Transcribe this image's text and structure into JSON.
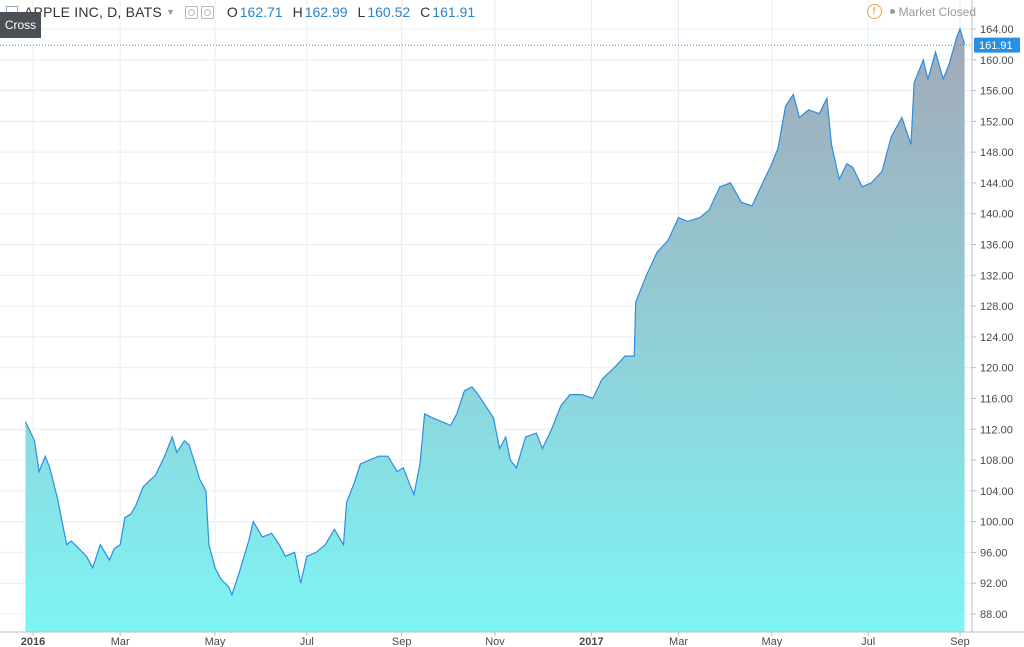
{
  "header": {
    "symbol": "APPLE INC, D, BATS",
    "open_label": "O",
    "open": "162.71",
    "high_label": "H",
    "high": "162.99",
    "low_label": "L",
    "low": "160.52",
    "close_label": "C",
    "close": "161.91",
    "market_status": "Market Closed",
    "cross_label": "Cross"
  },
  "colors": {
    "line": "#2b8fe0",
    "fill_top": "#a3a8b8",
    "fill_bottom": "#7ef4f4",
    "last_price_bg": "#2b8fe0",
    "grid": "#e9ecef"
  },
  "chart_data": {
    "type": "area",
    "title": "",
    "xlabel": "",
    "ylabel": "",
    "ylim": [
      86,
      166
    ],
    "y_ticks": [
      "88.00",
      "92.00",
      "96.00",
      "100.00",
      "104.00",
      "108.00",
      "112.00",
      "116.00",
      "120.00",
      "124.00",
      "128.00",
      "132.00",
      "136.00",
      "140.00",
      "144.00",
      "148.00",
      "152.00",
      "156.00",
      "160.00",
      "164.00"
    ],
    "x_ticks": [
      {
        "label": "2016",
        "date": "2016-01-04",
        "bold": true
      },
      {
        "label": "Mar",
        "date": "2016-03-01"
      },
      {
        "label": "May",
        "date": "2016-05-02"
      },
      {
        "label": "Jul",
        "date": "2016-07-01"
      },
      {
        "label": "Sep",
        "date": "2016-09-01"
      },
      {
        "label": "Nov",
        "date": "2016-11-01"
      },
      {
        "label": "2017",
        "date": "2017-01-03",
        "bold": true
      },
      {
        "label": "Mar",
        "date": "2017-03-01"
      },
      {
        "label": "May",
        "date": "2017-05-01"
      },
      {
        "label": "Jul",
        "date": "2017-07-03"
      },
      {
        "label": "Sep",
        "date": "2017-09-01"
      }
    ],
    "last_price": "161.91",
    "series": [
      {
        "values": [
          [
            "2015-12-30",
            113.0
          ],
          [
            "2016-01-05",
            110.5
          ],
          [
            "2016-01-08",
            106.5
          ],
          [
            "2016-01-12",
            108.5
          ],
          [
            "2016-01-15",
            107.0
          ],
          [
            "2016-01-20",
            103.0
          ],
          [
            "2016-01-26",
            97.0
          ],
          [
            "2016-01-29",
            97.5
          ],
          [
            "2016-02-03",
            96.5
          ],
          [
            "2016-02-08",
            95.5
          ],
          [
            "2016-02-12",
            94.0
          ],
          [
            "2016-02-17",
            97.0
          ],
          [
            "2016-02-23",
            95.0
          ],
          [
            "2016-02-26",
            96.5
          ],
          [
            "2016-03-01",
            97.0
          ],
          [
            "2016-03-04",
            100.5
          ],
          [
            "2016-03-08",
            101.0
          ],
          [
            "2016-03-11",
            102.0
          ],
          [
            "2016-03-16",
            104.5
          ],
          [
            "2016-03-21",
            105.5
          ],
          [
            "2016-03-24",
            106.0
          ],
          [
            "2016-03-30",
            108.5
          ],
          [
            "2016-04-04",
            111.0
          ],
          [
            "2016-04-07",
            109.0
          ],
          [
            "2016-04-12",
            110.5
          ],
          [
            "2016-04-15",
            110.0
          ],
          [
            "2016-04-19",
            107.5
          ],
          [
            "2016-04-22",
            105.5
          ],
          [
            "2016-04-26",
            104.0
          ],
          [
            "2016-04-28",
            97.0
          ],
          [
            "2016-05-02",
            94.0
          ],
          [
            "2016-05-06",
            92.5
          ],
          [
            "2016-05-11",
            91.5
          ],
          [
            "2016-05-13",
            90.5
          ],
          [
            "2016-05-18",
            93.5
          ],
          [
            "2016-05-24",
            97.5
          ],
          [
            "2016-05-27",
            100.0
          ],
          [
            "2016-06-02",
            98.0
          ],
          [
            "2016-06-08",
            98.5
          ],
          [
            "2016-06-13",
            97.0
          ],
          [
            "2016-06-17",
            95.5
          ],
          [
            "2016-06-23",
            96.0
          ],
          [
            "2016-06-27",
            92.0
          ],
          [
            "2016-07-01",
            95.5
          ],
          [
            "2016-07-07",
            96.0
          ],
          [
            "2016-07-13",
            97.0
          ],
          [
            "2016-07-19",
            99.0
          ],
          [
            "2016-07-25",
            97.0
          ],
          [
            "2016-07-27",
            102.5
          ],
          [
            "2016-08-01",
            105.0
          ],
          [
            "2016-08-05",
            107.5
          ],
          [
            "2016-08-11",
            108.0
          ],
          [
            "2016-08-17",
            108.5
          ],
          [
            "2016-08-23",
            108.5
          ],
          [
            "2016-08-29",
            106.5
          ],
          [
            "2016-09-02",
            107.0
          ],
          [
            "2016-09-09",
            103.5
          ],
          [
            "2016-09-13",
            107.5
          ],
          [
            "2016-09-16",
            114.0
          ],
          [
            "2016-09-21",
            113.5
          ],
          [
            "2016-09-27",
            113.0
          ],
          [
            "2016-10-03",
            112.5
          ],
          [
            "2016-10-07",
            114.0
          ],
          [
            "2016-10-12",
            117.0
          ],
          [
            "2016-10-17",
            117.5
          ],
          [
            "2016-10-21",
            116.5
          ],
          [
            "2016-10-26",
            115.0
          ],
          [
            "2016-10-31",
            113.5
          ],
          [
            "2016-11-04",
            109.5
          ],
          [
            "2016-11-08",
            111.0
          ],
          [
            "2016-11-11",
            108.0
          ],
          [
            "2016-11-15",
            107.0
          ],
          [
            "2016-11-21",
            111.0
          ],
          [
            "2016-11-28",
            111.5
          ],
          [
            "2016-12-02",
            109.5
          ],
          [
            "2016-12-08",
            112.0
          ],
          [
            "2016-12-14",
            115.0
          ],
          [
            "2016-12-20",
            116.5
          ],
          [
            "2016-12-28",
            116.5
          ],
          [
            "2017-01-04",
            116.0
          ],
          [
            "2017-01-10",
            118.5
          ],
          [
            "2017-01-18",
            120.0
          ],
          [
            "2017-01-25",
            121.5
          ],
          [
            "2017-01-31",
            121.5
          ],
          [
            "2017-02-01",
            128.5
          ],
          [
            "2017-02-08",
            132.0
          ],
          [
            "2017-02-15",
            135.0
          ],
          [
            "2017-02-22",
            136.5
          ],
          [
            "2017-03-01",
            139.5
          ],
          [
            "2017-03-07",
            139.0
          ],
          [
            "2017-03-15",
            139.5
          ],
          [
            "2017-03-21",
            140.5
          ],
          [
            "2017-03-28",
            143.5
          ],
          [
            "2017-04-04",
            144.0
          ],
          [
            "2017-04-11",
            141.5
          ],
          [
            "2017-04-18",
            141.0
          ],
          [
            "2017-04-25",
            144.0
          ],
          [
            "2017-05-01",
            146.5
          ],
          [
            "2017-05-05",
            148.5
          ],
          [
            "2017-05-10",
            154.0
          ],
          [
            "2017-05-15",
            155.5
          ],
          [
            "2017-05-19",
            152.5
          ],
          [
            "2017-05-25",
            153.5
          ],
          [
            "2017-06-01",
            153.0
          ],
          [
            "2017-06-06",
            155.0
          ],
          [
            "2017-06-09",
            149.0
          ],
          [
            "2017-06-14",
            144.5
          ],
          [
            "2017-06-19",
            146.5
          ],
          [
            "2017-06-23",
            146.0
          ],
          [
            "2017-06-29",
            143.5
          ],
          [
            "2017-07-05",
            144.0
          ],
          [
            "2017-07-12",
            145.5
          ],
          [
            "2017-07-18",
            150.0
          ],
          [
            "2017-07-25",
            152.5
          ],
          [
            "2017-07-31",
            149.0
          ],
          [
            "2017-08-02",
            157.0
          ],
          [
            "2017-08-08",
            160.0
          ],
          [
            "2017-08-11",
            157.5
          ],
          [
            "2017-08-16",
            161.0
          ],
          [
            "2017-08-21",
            157.5
          ],
          [
            "2017-08-25",
            159.5
          ],
          [
            "2017-08-30",
            163.0
          ],
          [
            "2017-09-01",
            164.0
          ],
          [
            "2017-09-04",
            162.0
          ]
        ]
      }
    ]
  }
}
